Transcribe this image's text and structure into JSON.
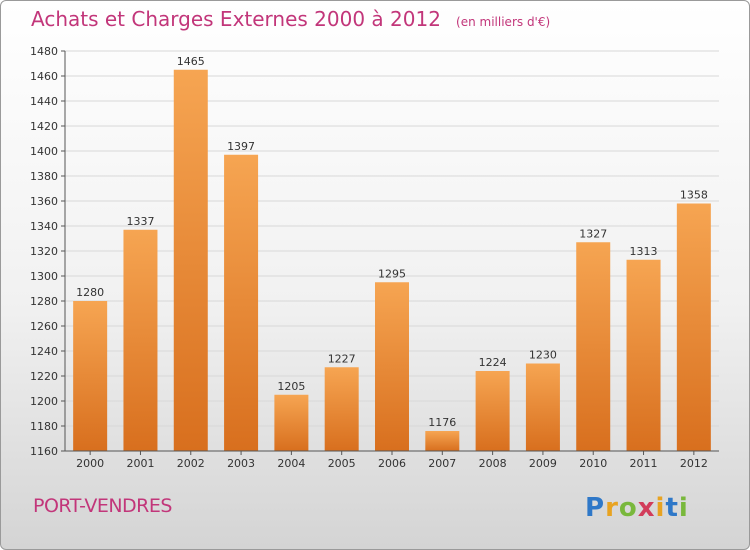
{
  "header": {
    "title": "Achats et Charges Externes 2000 à 2012",
    "unit": "(en milliers d'€)"
  },
  "footer": {
    "place": "PORT-VENDRES",
    "brand": {
      "letters": [
        "P",
        "r",
        "o",
        "x",
        "i",
        "t",
        "i"
      ],
      "colors": [
        "#2f78c8",
        "#e8a321",
        "#79b83c",
        "#d23c5a",
        "#e8a321",
        "#2f78c8",
        "#79b83c"
      ]
    }
  },
  "colors": {
    "bar_top": "#f6a552",
    "bar_bottom": "#d86f1e",
    "grid": "#d8d8d8",
    "title": "#c2367a"
  },
  "chart_data": {
    "type": "bar",
    "categories": [
      "2000",
      "2001",
      "2002",
      "2003",
      "2004",
      "2005",
      "2006",
      "2007",
      "2008",
      "2009",
      "2010",
      "2011",
      "2012"
    ],
    "values": [
      1280,
      1337,
      1465,
      1397,
      1205,
      1227,
      1295,
      1176,
      1224,
      1230,
      1327,
      1313,
      1358
    ],
    "ylim": [
      1160,
      1480
    ],
    "ytick_step": 20,
    "grid": true,
    "data_labels": true
  }
}
